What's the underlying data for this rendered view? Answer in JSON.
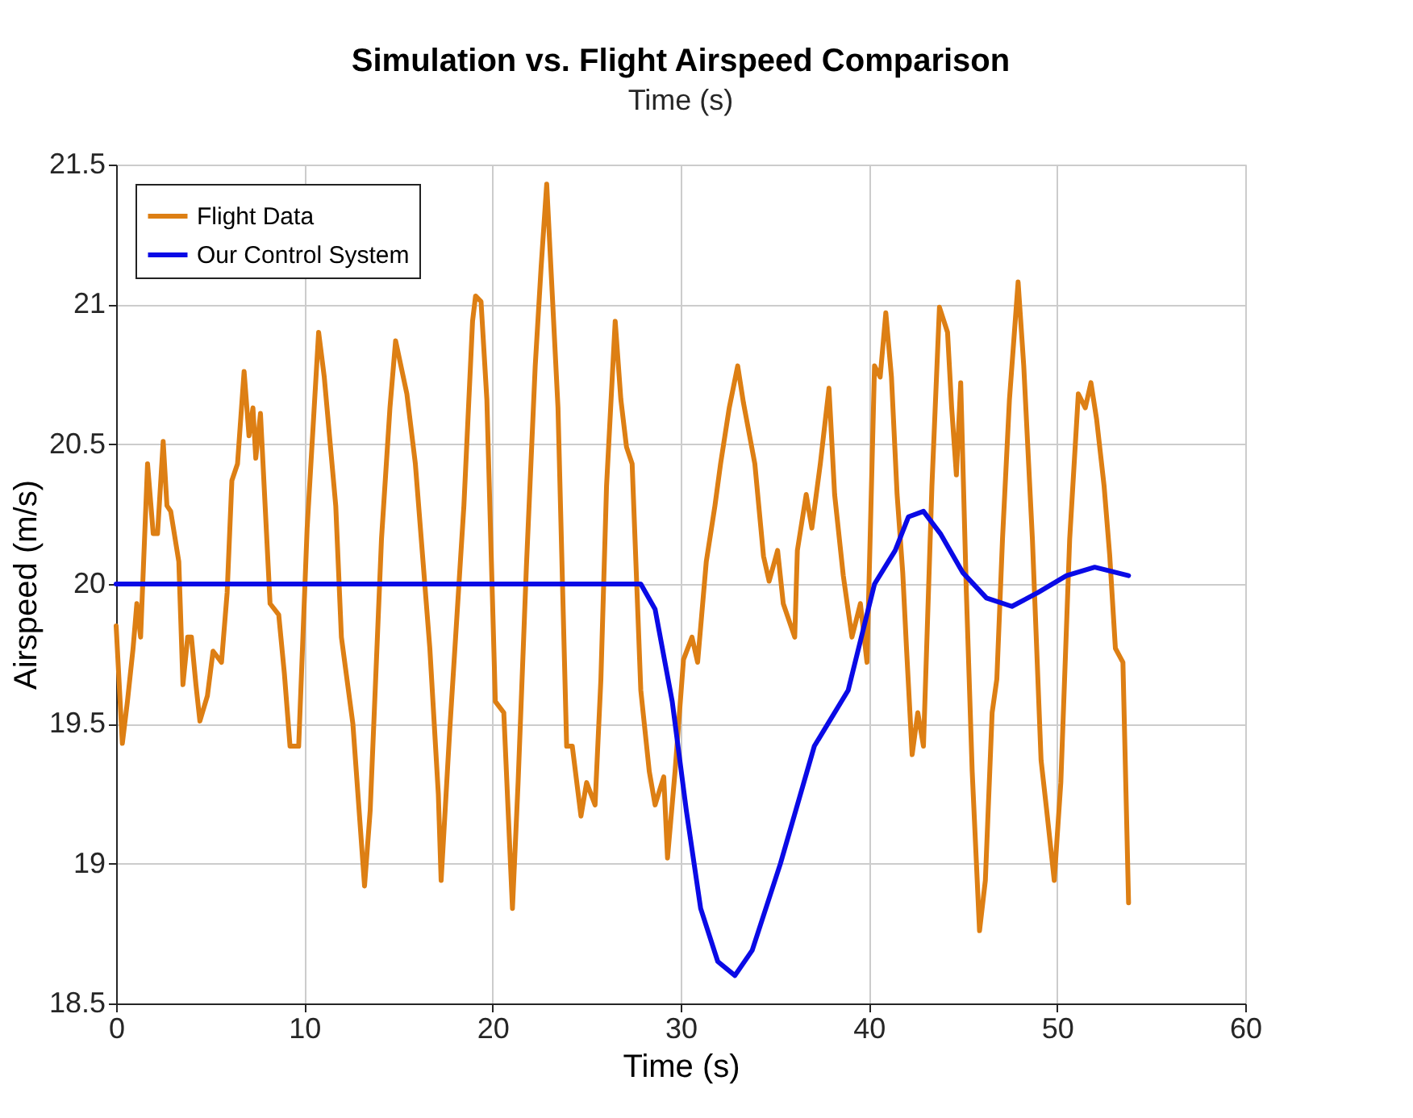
{
  "chart_data": {
    "type": "line",
    "title": "Simulation vs. Flight Airspeed Comparison",
    "xlabel": "Time (s)",
    "ylabel": "Airspeed (m/s)",
    "annotations": [
      "Time (s)"
    ],
    "xlim": [
      0,
      60
    ],
    "xticks": [
      0,
      10,
      20,
      30,
      40,
      50,
      60
    ],
    "ylim": [
      18.5,
      21.5
    ],
    "yticks": [
      18.5,
      19,
      19.5,
      20,
      20.5,
      21,
      21.5
    ],
    "grid": true,
    "legend": "top left",
    "line_style": "solid",
    "marker": "none",
    "series": [
      {
        "name": "Flight Data",
        "color": "#dd7f14",
        "x": [
          0,
          0.33,
          0.6,
          0.9,
          1.1,
          1.3,
          1.67,
          1.97,
          2.2,
          2.5,
          2.7,
          2.9,
          3.33,
          3.55,
          3.8,
          4.0,
          4.24,
          4.45,
          4.85,
          5.15,
          5.6,
          5.9,
          6.15,
          6.45,
          6.8,
          7.06,
          7.27,
          7.42,
          7.67,
          8.18,
          8.64,
          8.94,
          9.24,
          9.7,
          10.15,
          10.76,
          11.06,
          11.67,
          11.97,
          12.58,
          13.2,
          13.5,
          14.1,
          14.55,
          14.85,
          15.45,
          15.9,
          16.67,
          17.12,
          17.27,
          17.73,
          18.48,
          18.94,
          19.1,
          19.39,
          19.7,
          20.15,
          20.6,
          21.06,
          21.36,
          21.8,
          22.27,
          22.58,
          22.88,
          23.18,
          23.48,
          23.94,
          24.24,
          24.7,
          25.0,
          25.45,
          25.76,
          26.06,
          26.52,
          26.82,
          27.12,
          27.42,
          27.88,
          28.33,
          28.64,
          29.1,
          29.3,
          29.7,
          30.15,
          30.6,
          30.9,
          31.36,
          31.82,
          32.12,
          32.58,
          33.03,
          33.33,
          33.94,
          34.4,
          34.7,
          35.15,
          35.45,
          36.06,
          36.2,
          36.67,
          36.97,
          37.42,
          37.88,
          38.18,
          38.64,
          39.1,
          39.55,
          39.9,
          40.3,
          40.6,
          40.9,
          41.2,
          41.5,
          41.8,
          42.0,
          42.3,
          42.6,
          42.9,
          43.35,
          43.75,
          44.18,
          44.4,
          44.65,
          44.88,
          45.18,
          45.49,
          45.88,
          46.19,
          46.55,
          46.8,
          47.1,
          47.47,
          47.93,
          48.23,
          48.69,
          49.15,
          49.45,
          49.85,
          50.2,
          50.67,
          51.13,
          51.5,
          51.8,
          52.1,
          52.5,
          52.8,
          53.1,
          53.5,
          53.8
        ],
        "values": [
          19.85,
          19.43,
          19.58,
          19.77,
          19.93,
          19.81,
          20.43,
          20.18,
          20.18,
          20.51,
          20.28,
          20.26,
          20.08,
          19.64,
          19.81,
          19.81,
          19.64,
          19.51,
          19.6,
          19.76,
          19.72,
          19.97,
          20.37,
          20.43,
          20.76,
          20.53,
          20.63,
          20.45,
          20.61,
          19.93,
          19.89,
          19.68,
          19.42,
          19.42,
          20.2,
          20.9,
          20.74,
          20.28,
          19.81,
          19.5,
          18.92,
          19.19,
          20.16,
          20.63,
          20.87,
          20.68,
          20.43,
          19.77,
          19.25,
          18.94,
          19.48,
          20.28,
          20.94,
          21.03,
          21.01,
          20.66,
          19.58,
          19.54,
          18.84,
          19.29,
          20.06,
          20.78,
          21.13,
          21.43,
          21.03,
          20.63,
          19.42,
          19.42,
          19.17,
          19.29,
          19.21,
          19.66,
          20.35,
          20.94,
          20.66,
          20.49,
          20.43,
          19.62,
          19.33,
          19.21,
          19.31,
          19.02,
          19.33,
          19.73,
          19.81,
          19.72,
          20.08,
          20.28,
          20.43,
          20.63,
          20.78,
          20.65,
          20.43,
          20.1,
          20.01,
          20.12,
          19.93,
          19.81,
          20.12,
          20.32,
          20.2,
          20.43,
          20.7,
          20.32,
          20.03,
          19.81,
          19.93,
          19.72,
          20.78,
          20.74,
          20.97,
          20.74,
          20.32,
          20.04,
          19.77,
          19.39,
          19.54,
          19.42,
          20.35,
          20.99,
          20.9,
          20.63,
          20.39,
          20.72,
          19.97,
          19.33,
          18.76,
          18.94,
          19.54,
          19.66,
          20.16,
          20.66,
          21.08,
          20.78,
          20.16,
          19.37,
          19.19,
          18.94,
          19.29,
          20.16,
          20.68,
          20.63,
          20.72,
          20.59,
          20.35,
          20.1,
          19.77,
          19.72,
          18.86
        ]
      },
      {
        "name": "Our Control System",
        "color": "#0a0ae6",
        "x": [
          0,
          27.88,
          28.64,
          29.55,
          30.3,
          31.06,
          31.97,
          32.88,
          33.8,
          35.3,
          37.1,
          38.9,
          40.3,
          41.4,
          42.1,
          42.9,
          43.8,
          45.0,
          46.25,
          47.6,
          49.0,
          50.5,
          52.0,
          53.8
        ],
        "values": [
          20,
          20,
          19.91,
          19.58,
          19.19,
          18.84,
          18.65,
          18.6,
          18.69,
          19.0,
          19.42,
          19.62,
          20.0,
          20.12,
          20.24,
          20.26,
          20.18,
          20.04,
          19.95,
          19.92,
          19.97,
          20.03,
          20.06,
          20.03
        ]
      }
    ]
  }
}
